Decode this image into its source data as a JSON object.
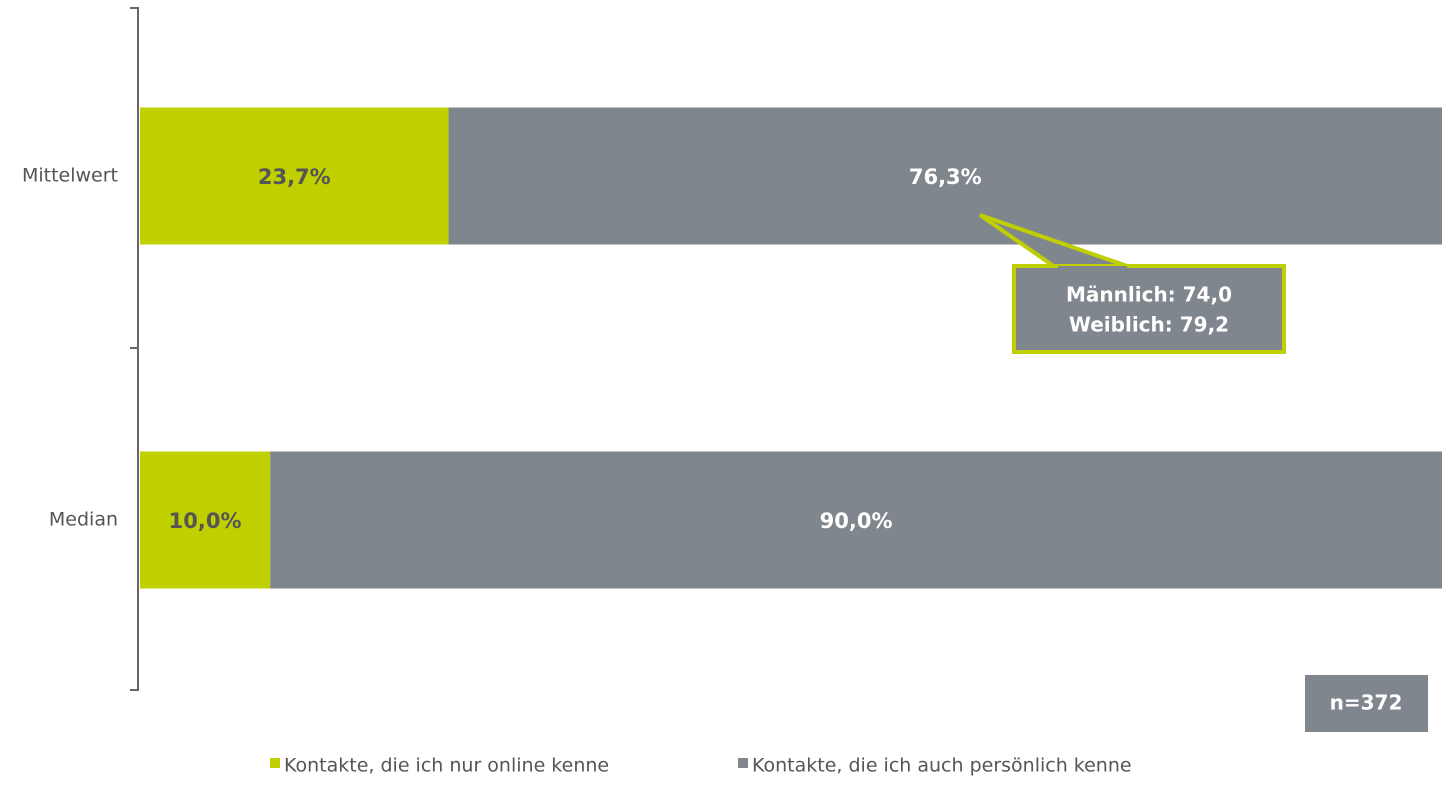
{
  "chart_data": {
    "type": "stacked_bar_horizontal",
    "categories": [
      "Mittelwert",
      "Median"
    ],
    "series": [
      {
        "name": "Kontakte, die ich nur online kenne",
        "color": "#c0cf00",
        "values": [
          23.7,
          10.0
        ],
        "value_labels": [
          "23,7%",
          "10,0%"
        ]
      },
      {
        "name": "Kontakte, die ich auch persönlich kenne",
        "color": "#80868e",
        "values": [
          76.3,
          90.0
        ],
        "value_labels": [
          "76,3%",
          "90,0%"
        ]
      }
    ],
    "xlim": [
      0,
      100
    ],
    "annotations": [
      "Männlich: 74,0",
      "Weiblich: 79,2"
    ],
    "sample_size": "n=372",
    "legend": "bottom"
  }
}
